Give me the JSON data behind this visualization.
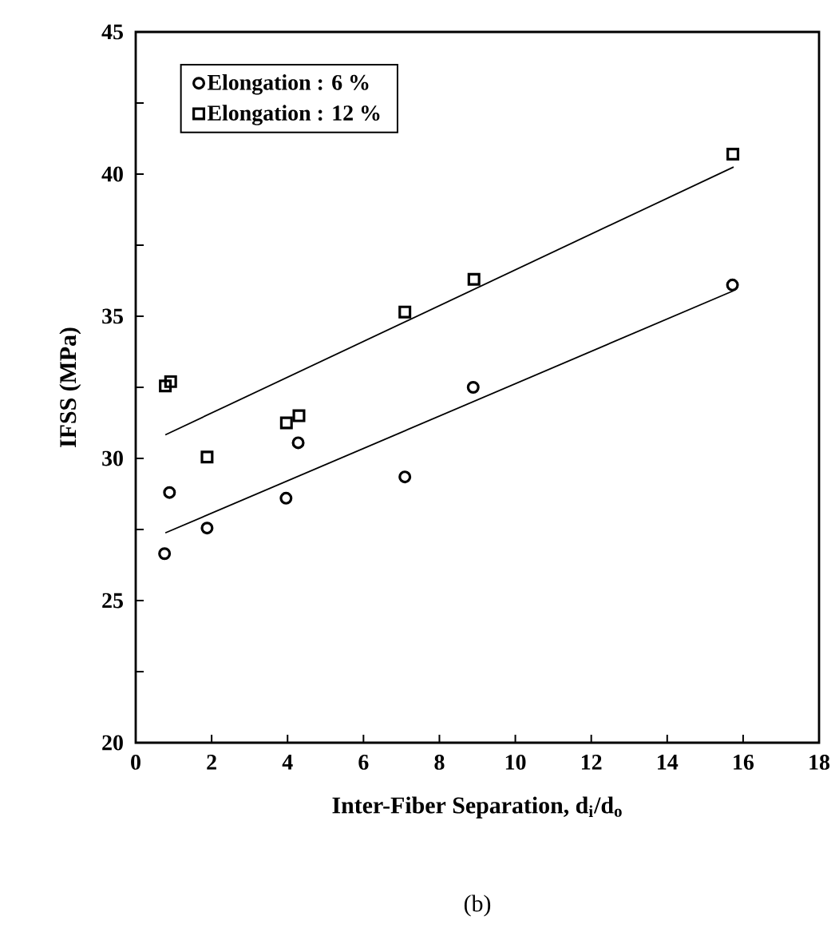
{
  "chart_data": {
    "type": "scatter",
    "xlabel": "Inter-Fiber Separation, d$_{i}$/d$_{o}$",
    "ylabel": "IFSS (MPa)",
    "annotations": [
      "(b)"
    ],
    "xlim": [
      0,
      18
    ],
    "xticks": [
      0,
      2,
      4,
      6,
      8,
      10,
      12,
      14,
      16,
      18
    ],
    "ylim": [
      20,
      45
    ],
    "yticks": [
      20,
      {
        "value": 22.5,
        "label": null
      },
      25,
      {
        "value": 27.5,
        "label": null
      },
      30,
      {
        "value": 32.5,
        "label": null
      },
      35,
      {
        "value": 37.5,
        "label": null
      },
      40,
      {
        "value": 42.5,
        "label": null
      },
      45
    ],
    "legend": "top left",
    "grid": false,
    "series": [
      {
        "name": "Elongation : 6 %",
        "marker": "circle",
        "color": "#000000",
        "x": [
          0.76,
          0.89,
          1.88,
          3.96,
          4.28,
          7.09,
          8.89,
          15.72
        ],
        "values": [
          26.65,
          28.8,
          27.55,
          28.6,
          30.55,
          29.35,
          32.5,
          36.1
        ]
      },
      {
        "name": "Elongation : 12 %",
        "marker": "square",
        "color": "#000000",
        "x": [
          0.78,
          0.92,
          1.88,
          3.97,
          4.3,
          7.09,
          8.91,
          15.73
        ],
        "values": [
          32.55,
          32.7,
          30.05,
          31.25,
          31.5,
          35.15,
          36.3,
          40.7
        ]
      },
      {
        "type": "line",
        "marker": "none",
        "color": "#000000",
        "x": [
          0.78,
          15.75
        ],
        "values": [
          27.38,
          35.9
        ]
      },
      {
        "type": "line",
        "marker": "none",
        "color": "#000000",
        "x": [
          0.78,
          15.75
        ],
        "values": [
          30.83,
          40.25
        ]
      }
    ]
  }
}
